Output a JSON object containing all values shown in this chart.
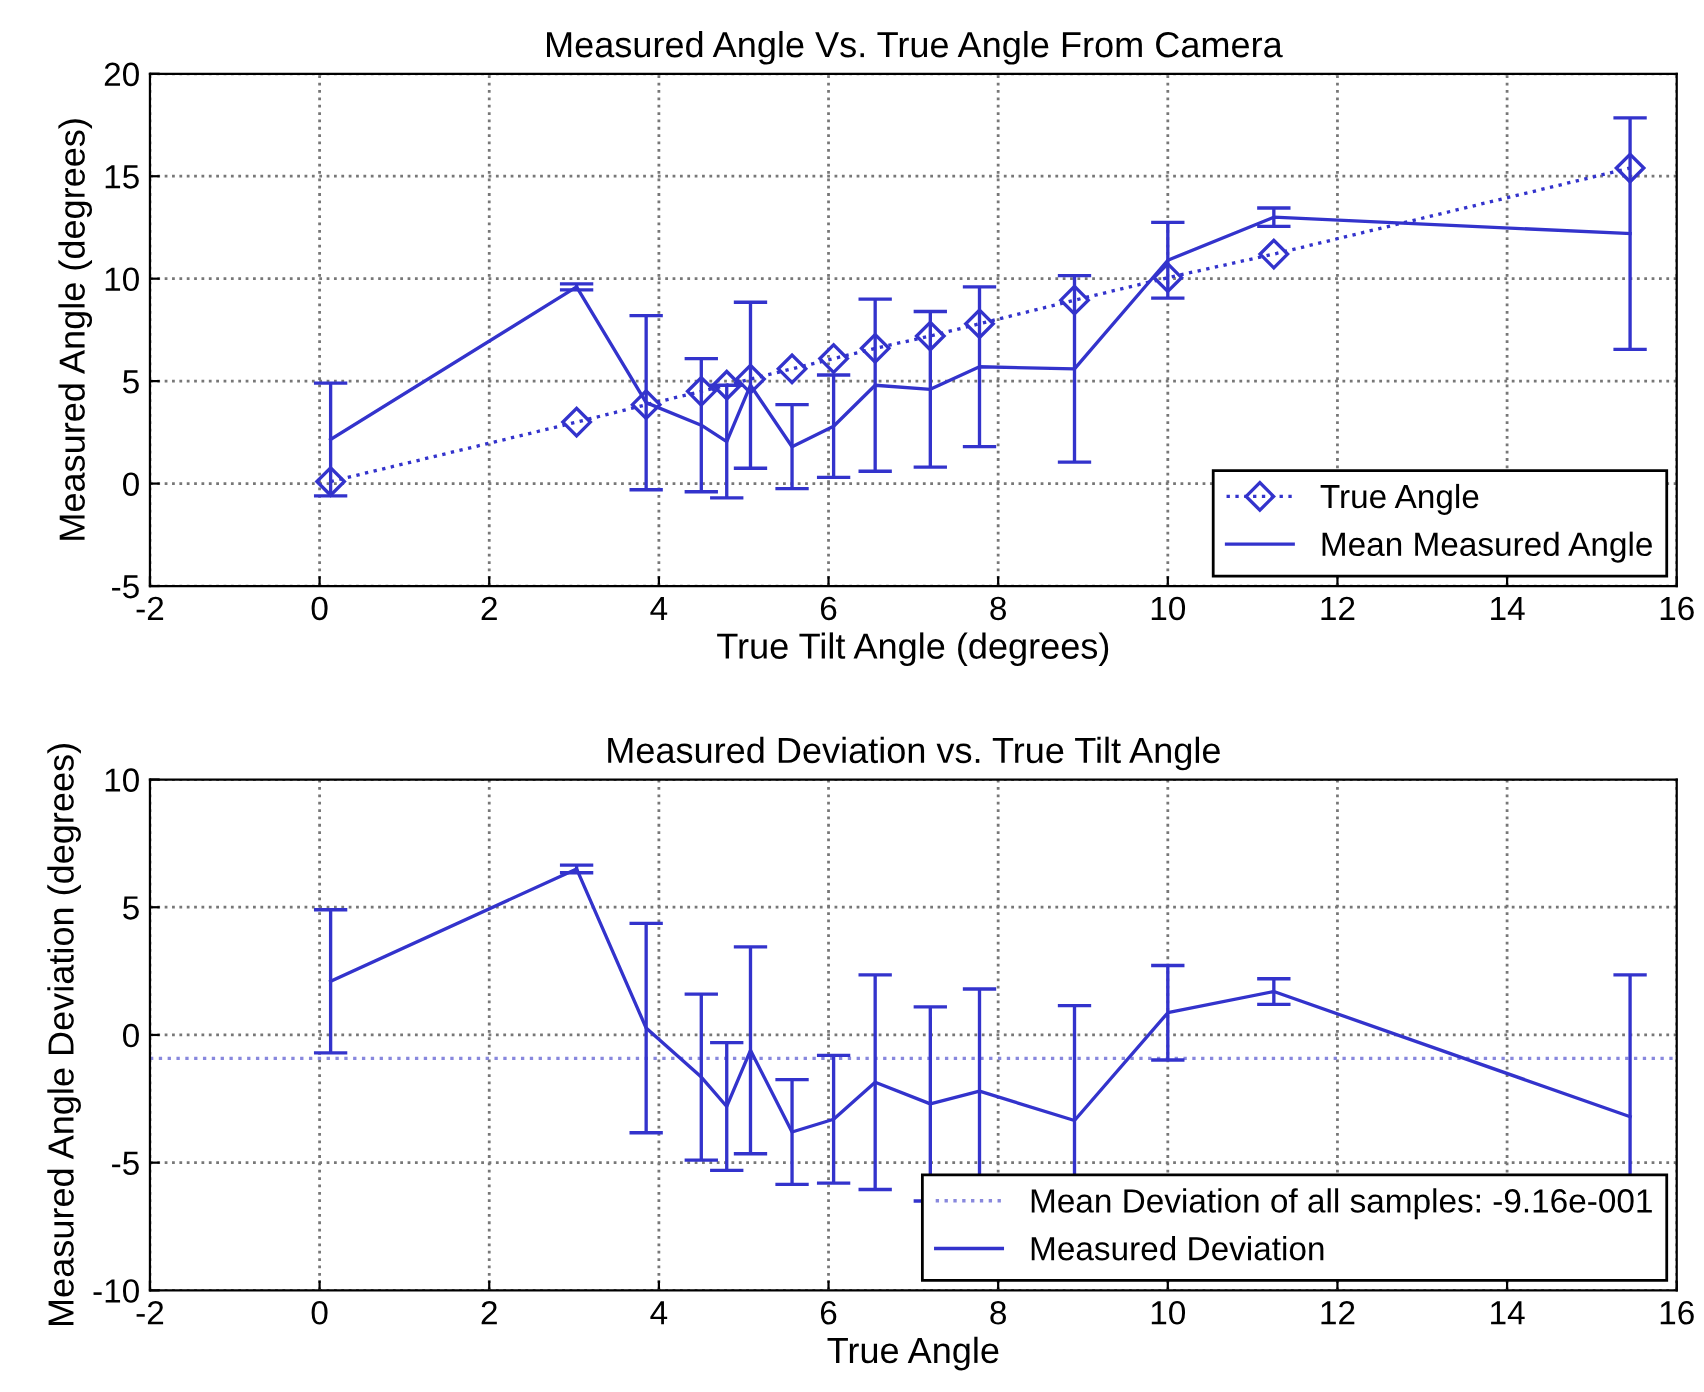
{
  "chart_data": [
    {
      "type": "line",
      "title": "Measured Angle Vs. True Angle From Camera",
      "xlabel": "True Tilt Angle (degrees)",
      "ylabel": "Measured Angle (degrees)",
      "xlim": [
        -2,
        16
      ],
      "xticks": [
        -2,
        0,
        2,
        4,
        6,
        8,
        10,
        12,
        14,
        16
      ],
      "ylim": [
        -5,
        20
      ],
      "yticks": [
        -5,
        0,
        5,
        10,
        15,
        20
      ],
      "grid": true,
      "legend": "bottom right",
      "series": [
        {
          "name": "True Angle",
          "color": "#3333cc",
          "marker": "diamond",
          "line_style": "dotted",
          "x": [
            0.13,
            3.03,
            3.85,
            4.5,
            4.8,
            5.08,
            5.57,
            6.06,
            6.55,
            7.2,
            7.78,
            8.9,
            10.0,
            11.25,
            15.45
          ],
          "values": [
            0.1,
            3.0,
            3.85,
            4.5,
            4.8,
            5.1,
            5.6,
            6.1,
            6.6,
            7.2,
            7.8,
            8.95,
            10.05,
            11.2,
            15.4
          ]
        },
        {
          "name": "Mean Measured Angle",
          "color": "#3333cc",
          "marker": "none",
          "line_style": "solid",
          "x": [
            0.13,
            3.03,
            3.85,
            4.5,
            4.8,
            5.08,
            5.57,
            6.06,
            6.55,
            7.2,
            7.78,
            8.9,
            10.0,
            11.25,
            15.45
          ],
          "values": [
            2.15,
            9.6,
            3.95,
            2.85,
            2.05,
            4.8,
            1.8,
            2.8,
            4.8,
            4.6,
            5.7,
            5.6,
            10.9,
            13.0,
            12.2
          ],
          "errors": [
            2.75,
            0.15,
            4.25,
            3.25,
            2.75,
            4.05,
            2.05,
            2.5,
            4.2,
            3.8,
            3.9,
            4.55,
            1.85,
            0.45,
            5.65
          ]
        }
      ]
    },
    {
      "type": "line",
      "title": "Measured Deviation vs. True Tilt Angle",
      "xlabel": "True Angle",
      "ylabel": "Measured Angle Deviation (degrees)",
      "xlim": [
        -2,
        16
      ],
      "xticks": [
        -2,
        0,
        2,
        4,
        6,
        8,
        10,
        12,
        14,
        16
      ],
      "ylim": [
        -10,
        10
      ],
      "yticks": [
        -10,
        -5,
        0,
        5,
        10
      ],
      "grid": true,
      "legend": "bottom right",
      "series": [
        {
          "name": "Mean Deviation of all samples: -9.16e-001",
          "color": "#8888dd",
          "marker": "none",
          "line_style": "dotted",
          "x": [
            -2,
            16
          ],
          "values": [
            -0.916,
            -0.916
          ]
        },
        {
          "name": "Measured Deviation",
          "color": "#3333cc",
          "marker": "none",
          "line_style": "solid",
          "x": [
            0.13,
            3.03,
            3.85,
            4.5,
            4.8,
            5.08,
            5.57,
            6.06,
            6.55,
            7.2,
            7.78,
            8.9,
            10.0,
            11.25,
            15.45
          ],
          "values": [
            2.1,
            6.5,
            0.27,
            -1.65,
            -2.8,
            -0.6,
            -3.8,
            -3.3,
            -1.85,
            -2.7,
            -2.2,
            -3.35,
            0.87,
            1.7,
            -3.2
          ],
          "errors": [
            2.8,
            0.15,
            4.1,
            3.25,
            2.5,
            4.05,
            2.05,
            2.5,
            4.2,
            3.8,
            4.0,
            4.5,
            1.85,
            0.5,
            5.55
          ]
        }
      ]
    }
  ]
}
